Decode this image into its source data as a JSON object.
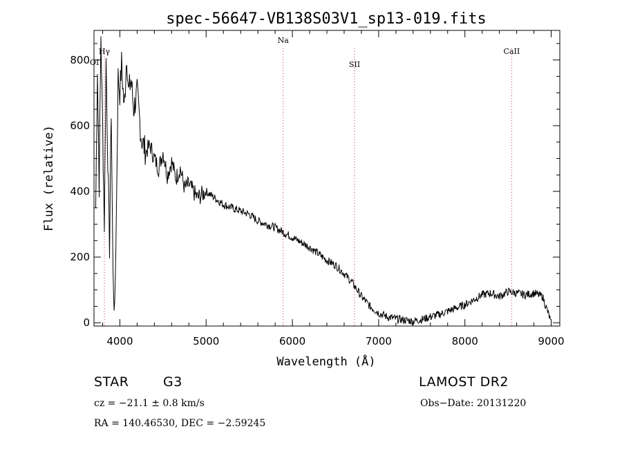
{
  "chart_data": {
    "type": "line",
    "title": "spec-56647-VB138S03V1_sp13-019.fits",
    "xlabel": "Wavelength (Å)",
    "ylabel": "Flux (relative)",
    "xlim": [
      3700,
      9100
    ],
    "ylim": [
      -10,
      890
    ],
    "xticks": [
      4000,
      5000,
      6000,
      7000,
      8000,
      9000
    ],
    "yticks": [
      0,
      200,
      400,
      600,
      800
    ],
    "line_color": "#000000",
    "marker_color": "#cc3333",
    "series": [
      {
        "x": [
          3720,
          3740,
          3760,
          3780,
          3800,
          3820,
          3840,
          3860,
          3880,
          3900,
          3920,
          3940,
          3960,
          3980,
          4000,
          4020,
          4050,
          4080,
          4100,
          4130,
          4160,
          4200,
          4250,
          4300,
          4350,
          4400,
          4450,
          4500,
          4550,
          4600,
          4650,
          4700,
          4750,
          4800,
          4850,
          4900,
          4950,
          5000,
          5100,
          5200,
          5300,
          5400,
          5500,
          5600,
          5700,
          5800,
          5900,
          6000,
          6100,
          6200,
          6300,
          6400,
          6500,
          6600,
          6700,
          6800,
          6900,
          7000,
          7100,
          7200,
          7300,
          7400,
          7500,
          7600,
          7700,
          7800,
          7900,
          8000,
          8100,
          8200,
          8300,
          8400,
          8500,
          8600,
          8700,
          8800,
          8900,
          8990
        ],
        "y": [
          350,
          780,
          420,
          880,
          600,
          300,
          800,
          500,
          230,
          650,
          150,
          25,
          350,
          750,
          700,
          790,
          650,
          820,
          700,
          740,
          650,
          700,
          560,
          520,
          540,
          500,
          470,
          520,
          450,
          490,
          440,
          470,
          410,
          420,
          400,
          380,
          390,
          400,
          380,
          360,
          350,
          340,
          330,
          310,
          300,
          290,
          275,
          260,
          245,
          230,
          210,
          190,
          175,
          150,
          120,
          80,
          50,
          30,
          18,
          12,
          8,
          5,
          10,
          18,
          25,
          35,
          45,
          55,
          70,
          85,
          90,
          80,
          95,
          90,
          85,
          90,
          80,
          10
        ]
      }
    ],
    "line_markers": [
      {
        "label": "Hγ",
        "x": 3820
      },
      {
        "label": "Na",
        "x": 5893
      },
      {
        "label": "SII",
        "x": 6720
      },
      {
        "label": "CaII",
        "x": 8542
      }
    ],
    "partial_marker_label": "OI"
  },
  "info": {
    "class_label": "STAR",
    "subclass": "G3",
    "survey": "LAMOST DR2",
    "cz": "cz = −21.1 ± 0.8 km/s",
    "obs_date": "Obs−Date: 20131220",
    "coords": "RA = 140.46530, DEC =  −2.59245"
  }
}
